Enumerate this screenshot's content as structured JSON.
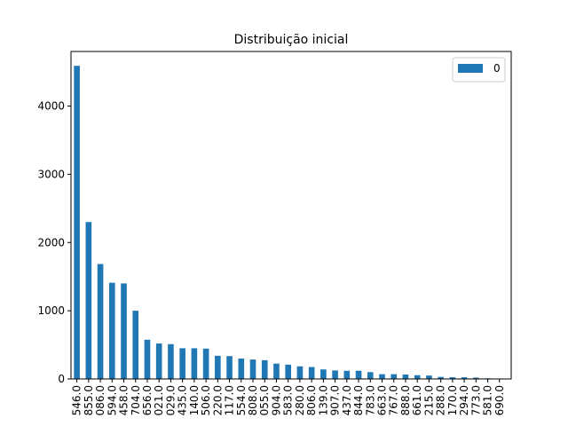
{
  "chart_data": {
    "type": "bar",
    "title": "Distribuição inicial",
    "xlabel": "",
    "ylabel": "",
    "categories": [
      "546.0",
      "855.0",
      "086.0",
      "594.0",
      "458.0",
      "704.0",
      "656.0",
      "021.0",
      "029.0",
      "435.0",
      "140.0",
      "506.0",
      "220.0",
      "117.0",
      "554.0",
      "808.0",
      "055.0",
      "904.0",
      "583.0",
      "280.0",
      "806.0",
      "139.0",
      "907.0",
      "437.0",
      "844.0",
      "783.0",
      "663.0",
      "767.0",
      "888.0",
      "661.0",
      "215.0",
      "288.0",
      "170.0",
      "294.0",
      "773.0",
      "581.0",
      "690.0"
    ],
    "series": [
      {
        "name": "0",
        "color": "#1f77b4",
        "values": [
          4590,
          2300,
          1685,
          1410,
          1400,
          1000,
          575,
          520,
          510,
          450,
          450,
          445,
          340,
          335,
          300,
          285,
          275,
          225,
          210,
          185,
          175,
          140,
          125,
          120,
          120,
          100,
          70,
          70,
          65,
          55,
          50,
          30,
          25,
          25,
          20,
          10,
          5
        ]
      }
    ],
    "ylim": [
      0,
      4800
    ],
    "yticks": [
      0,
      1000,
      2000,
      3000,
      4000
    ],
    "grid": false,
    "legend_position": "top-right"
  }
}
